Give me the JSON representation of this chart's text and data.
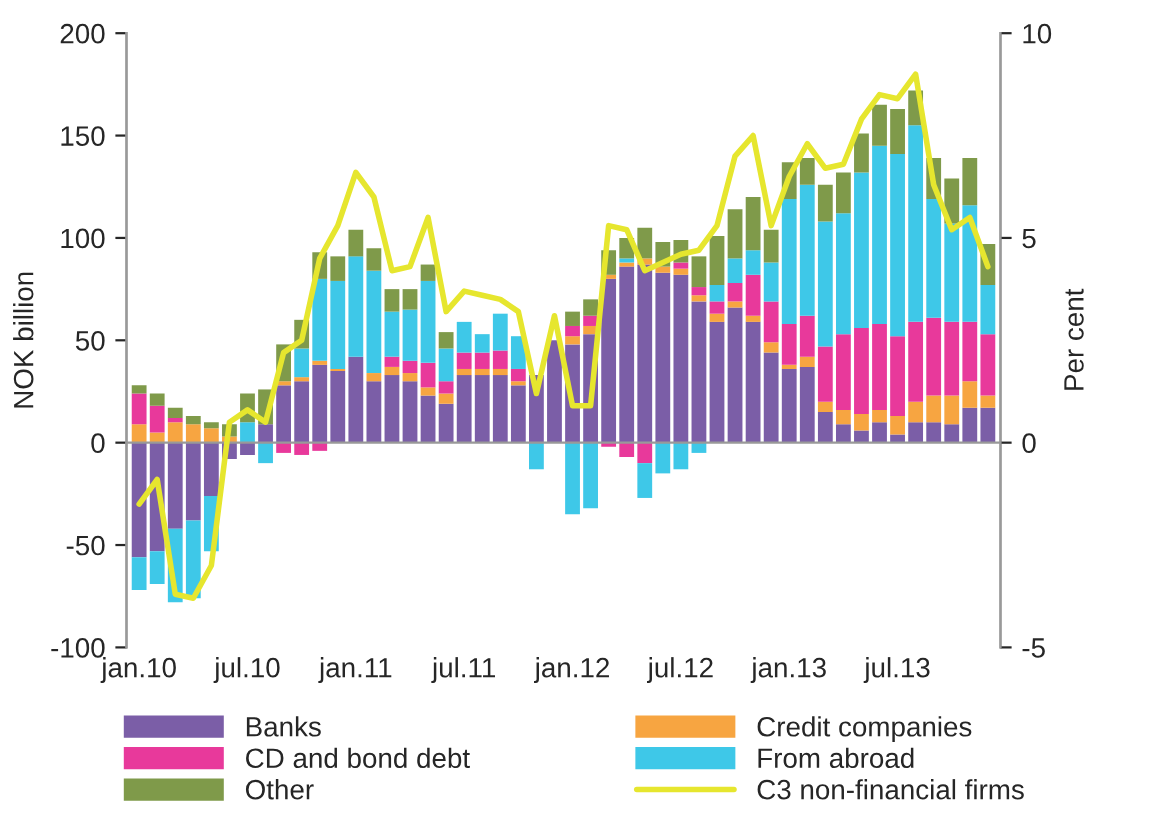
{
  "chart_data": {
    "type": "bar",
    "stacked": true,
    "ylabel": "NOK billion",
    "y2label": "Per cent",
    "categories": [
      "jan.10",
      null,
      null,
      null,
      null,
      null,
      "jul.10",
      null,
      null,
      null,
      null,
      null,
      "jan.11",
      null,
      null,
      null,
      null,
      null,
      "jul.11",
      null,
      null,
      null,
      null,
      null,
      "jan.12",
      null,
      null,
      null,
      null,
      null,
      "jul.12",
      null,
      null,
      null,
      null,
      null,
      "jan.13",
      null,
      null,
      null,
      null,
      null,
      "jul.13",
      null,
      null,
      null,
      null,
      null
    ],
    "ylim": [
      -100,
      200
    ],
    "yticks": [
      -100,
      -50,
      0,
      50,
      100,
      150,
      200
    ],
    "y2lim": [
      -5,
      10
    ],
    "y2ticks": [
      -5,
      0,
      5,
      10
    ],
    "legend": "bottom",
    "series": [
      {
        "name": "Banks",
        "color": "#7b5ea7",
        "values": [
          -56,
          -53,
          -42,
          -38,
          -26,
          -8,
          -6,
          9,
          28,
          30,
          38,
          35,
          42,
          30,
          33,
          30,
          23,
          19,
          33,
          33,
          33,
          28,
          33,
          50,
          48,
          53,
          80,
          86,
          87,
          83,
          82,
          69,
          59,
          66,
          59,
          44,
          36,
          37,
          15,
          9,
          6,
          10,
          4,
          10,
          10,
          9,
          17,
          17
        ]
      },
      {
        "name": "Credit companies",
        "color": "#f7a541",
        "values": [
          9,
          5,
          10,
          9,
          7,
          3,
          0,
          0,
          2,
          2,
          2,
          1,
          0,
          4,
          4,
          4,
          4,
          5,
          3,
          3,
          3,
          2,
          0,
          0,
          4,
          4,
          2,
          2,
          3,
          3,
          3,
          3,
          4,
          3,
          3,
          5,
          2,
          5,
          5,
          7,
          8,
          6,
          9,
          10,
          13,
          14,
          13,
          6
        ]
      },
      {
        "name": "CD and bond debt",
        "color": "#e8399b",
        "values": [
          15,
          13,
          2,
          0,
          0,
          0,
          0,
          0,
          -5,
          -6,
          -4,
          null,
          0,
          0,
          5,
          6,
          12,
          6,
          8,
          8,
          9,
          6,
          0,
          0,
          5,
          5,
          -2,
          -7,
          -10,
          null,
          3,
          4,
          6,
          9,
          20,
          20,
          20,
          20,
          27,
          37,
          42,
          42,
          39,
          39,
          38,
          36,
          29,
          30
        ]
      },
      {
        "name": "From abroad",
        "color": "#3ec8e8",
        "values": [
          -16,
          -16,
          -36,
          -38,
          -27,
          0,
          10,
          -10,
          0,
          14,
          40,
          43,
          49,
          50,
          22,
          25,
          40,
          16,
          15,
          9,
          18,
          16,
          -13,
          0,
          -35,
          -32,
          0,
          2,
          -17,
          -15,
          -13,
          -5,
          8,
          12,
          12,
          19,
          61,
          64,
          61,
          59,
          76,
          87,
          89,
          96,
          58,
          48,
          57,
          24
        ]
      },
      {
        "name": "Other",
        "color": "#7f9a4a",
        "values": [
          4,
          6,
          5,
          4,
          3,
          6,
          14,
          17,
          18,
          14,
          13,
          12,
          13,
          11,
          11,
          10,
          8,
          8,
          0,
          0,
          0,
          0,
          0,
          0,
          7,
          8,
          12,
          10,
          15,
          12,
          11,
          15,
          24,
          24,
          26,
          16,
          18,
          13,
          18,
          20,
          19,
          20,
          22,
          17,
          20,
          22,
          23,
          20
        ]
      },
      {
        "name": "C3 non-financial firms",
        "type": "line",
        "axis": "y2",
        "color": "#e6e62e",
        "marker": "none",
        "line_style": "solid",
        "values": [
          -1.5,
          -0.9,
          -3.7,
          -3.8,
          -3.0,
          0.5,
          0.8,
          0.5,
          2.2,
          2.5,
          4.5,
          5.3,
          6.6,
          6.0,
          4.2,
          4.3,
          5.5,
          3.2,
          3.7,
          3.6,
          3.5,
          3.2,
          1.2,
          3.1,
          0.9,
          0.9,
          5.3,
          5.2,
          4.2,
          4.4,
          4.6,
          4.7,
          5.3,
          7.0,
          7.5,
          5.3,
          6.5,
          7.3,
          6.7,
          6.8,
          7.9,
          8.5,
          8.4,
          9.0,
          6.3,
          5.2,
          5.5,
          4.3
        ]
      }
    ]
  }
}
